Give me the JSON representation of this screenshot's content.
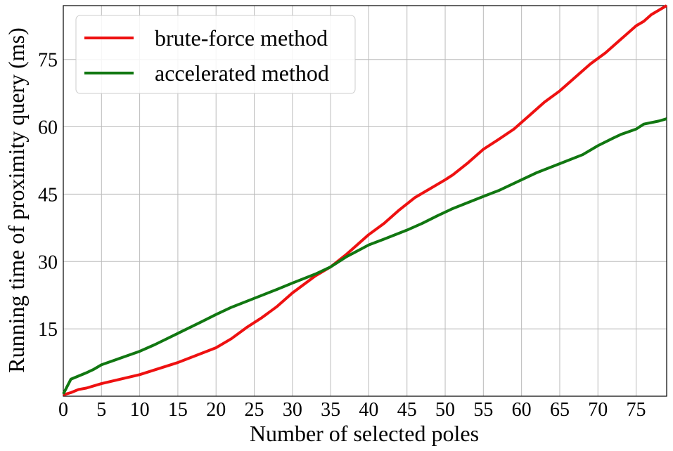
{
  "chart_data": {
    "type": "line",
    "x_label": "Number of selected poles",
    "y_label": "Running time of proximity query (ms)",
    "xlim": [
      0,
      79
    ],
    "ylim": [
      0,
      87
    ],
    "xticks": [
      0,
      5,
      10,
      15,
      20,
      25,
      30,
      35,
      40,
      45,
      50,
      55,
      60,
      65,
      70,
      75
    ],
    "yticks": [
      15,
      30,
      45,
      60,
      75
    ],
    "grid": true,
    "legend": "upper left",
    "series": [
      {
        "name": "brute-force method",
        "color": "#ee1111",
        "x": [
          0,
          1,
          2,
          3,
          5,
          10,
          15,
          20,
          22,
          24,
          26,
          28,
          30,
          33,
          35,
          37,
          40,
          42,
          44,
          46,
          48,
          50,
          51,
          53,
          55,
          57,
          59,
          61,
          63,
          65,
          67,
          69,
          71,
          73,
          75,
          76,
          77,
          78,
          79
        ],
        "values": [
          0.3,
          0.8,
          1.5,
          1.8,
          2.8,
          4.8,
          7.5,
          10.8,
          12.8,
          15.3,
          17.5,
          20,
          23,
          26.8,
          28.8,
          31.5,
          36,
          38.5,
          41.5,
          44.2,
          46.2,
          48.2,
          49.3,
          52,
          55,
          57.2,
          59.5,
          62.5,
          65.5,
          68,
          71,
          74,
          76.5,
          79.5,
          82.5,
          83.5,
          85,
          86,
          87
        ]
      },
      {
        "name": "accelerated method",
        "color": "#117711",
        "x": [
          0,
          1,
          2,
          3,
          4,
          5,
          7,
          10,
          12,
          15,
          18,
          20,
          22,
          25,
          28,
          30,
          33,
          35,
          37,
          40,
          42,
          45,
          47,
          49,
          51,
          55,
          57,
          60,
          62,
          65,
          68,
          70,
          72,
          73,
          75,
          76,
          78,
          79
        ],
        "values": [
          0.5,
          3.8,
          4.5,
          5.2,
          6,
          7,
          8.2,
          10,
          11.5,
          14,
          16.5,
          18.2,
          19.8,
          21.8,
          23.8,
          25.2,
          27.2,
          28.8,
          31,
          33.7,
          35,
          37,
          38.5,
          40.2,
          41.8,
          44.5,
          45.8,
          48.2,
          49.8,
          51.8,
          53.8,
          55.8,
          57.5,
          58.3,
          59.5,
          60.6,
          61.3,
          61.8
        ]
      }
    ]
  }
}
